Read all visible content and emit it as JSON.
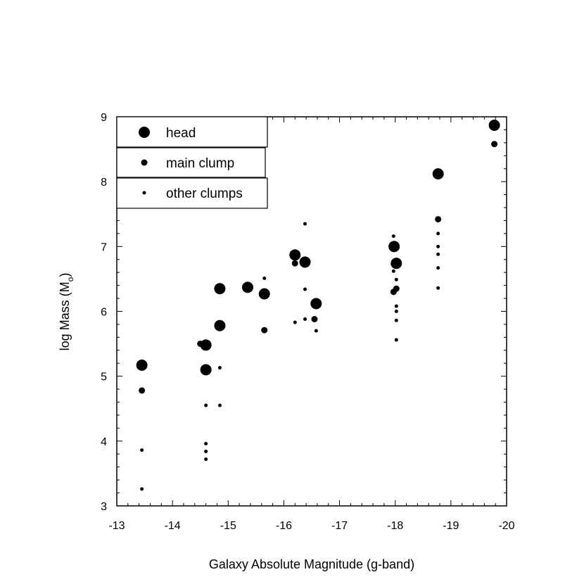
{
  "chart_data": {
    "type": "scatter",
    "title": "",
    "xlabel": "Galaxy Absolute Magnitude (g-band)",
    "ylabel_main": "log Mass (M",
    "ylabel_sub": "o",
    "ylabel_close": ")",
    "xlim": [
      -13,
      -20
    ],
    "ylim": [
      3,
      9
    ],
    "x_axis_reversed": true,
    "xticks": [
      -13,
      -14,
      -15,
      -16,
      -17,
      -18,
      -19,
      -20
    ],
    "yticks": [
      3,
      4,
      5,
      6,
      7,
      8,
      9
    ],
    "grid": false,
    "legend_position": "top-left",
    "series": [
      {
        "name": "head",
        "marker": "large-dot",
        "points": [
          [
            -13.45,
            5.17
          ],
          [
            -14.6,
            5.48
          ],
          [
            -14.6,
            5.1
          ],
          [
            -14.85,
            6.35
          ],
          [
            -14.85,
            5.78
          ],
          [
            -15.35,
            6.37
          ],
          [
            -15.65,
            6.27
          ],
          [
            -16.2,
            6.87
          ],
          [
            -16.38,
            6.76
          ],
          [
            -16.58,
            6.12
          ],
          [
            -17.98,
            7.0
          ],
          [
            -18.02,
            6.74
          ],
          [
            -18.77,
            8.12
          ],
          [
            -19.78,
            8.87
          ]
        ]
      },
      {
        "name": "main clump",
        "marker": "medium-dot",
        "points": [
          [
            -13.45,
            4.78
          ],
          [
            -14.5,
            5.5
          ],
          [
            -15.65,
            5.71
          ],
          [
            -16.2,
            6.74
          ],
          [
            -16.55,
            5.88
          ],
          [
            -17.97,
            6.3
          ],
          [
            -18.02,
            6.35
          ],
          [
            -18.77,
            7.42
          ],
          [
            -19.78,
            8.58
          ]
        ]
      },
      {
        "name": "other clumps",
        "marker": "small-dot",
        "points": [
          [
            -13.45,
            3.86
          ],
          [
            -13.45,
            3.26
          ],
          [
            -14.6,
            4.55
          ],
          [
            -14.6,
            3.96
          ],
          [
            -14.6,
            3.84
          ],
          [
            -14.6,
            3.72
          ],
          [
            -14.85,
            5.13
          ],
          [
            -14.85,
            4.55
          ],
          [
            -15.65,
            6.51
          ],
          [
            -16.2,
            5.83
          ],
          [
            -16.38,
            7.35
          ],
          [
            -16.38,
            6.34
          ],
          [
            -16.38,
            5.88
          ],
          [
            -16.58,
            5.7
          ],
          [
            -17.97,
            7.16
          ],
          [
            -17.97,
            6.62
          ],
          [
            -18.02,
            6.49
          ],
          [
            -18.02,
            6.08
          ],
          [
            -18.02,
            6.0
          ],
          [
            -18.02,
            5.86
          ],
          [
            -18.02,
            5.56
          ],
          [
            -18.77,
            7.2
          ],
          [
            -18.77,
            7.0
          ],
          [
            -18.77,
            6.88
          ],
          [
            -18.77,
            6.67
          ],
          [
            -18.77,
            6.36
          ]
        ]
      }
    ]
  }
}
